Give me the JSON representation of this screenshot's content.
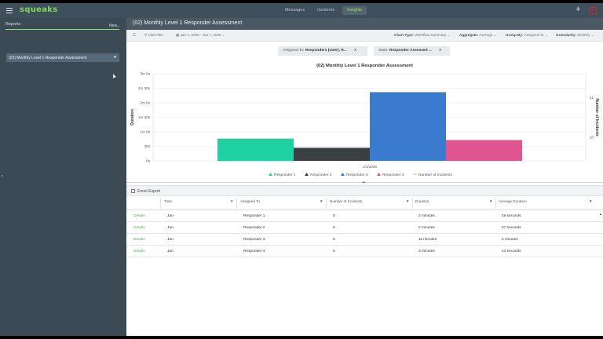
{
  "topnav": {
    "logo": "squeaks",
    "tabs": [
      {
        "label": "Messages",
        "active": false
      },
      {
        "label": "Incidents",
        "active": false
      },
      {
        "label": "Insights",
        "active": true
      }
    ],
    "plus": "+"
  },
  "sidebar": {
    "header": "Reports",
    "new_label": "New...",
    "items": [
      {
        "label": "(02) Monthly Level 1 Responder Assessment"
      }
    ],
    "collapse_glyph": "‹"
  },
  "main": {
    "title": "(02) Monthly Level 1 Responder Assessment"
  },
  "toolbar": {
    "add_filter": "Add Filter",
    "date_range": "Jan 1, 2026 - Jan 7, 2026",
    "chart_type_label": "Chart Type:",
    "chart_type_value": "Workflow Summary",
    "aggregate_label": "Aggregate:",
    "aggregate_value": "Average",
    "group_by_label": "Group By:",
    "group_by_value": "Assigned To",
    "granularity_label": "Granularity:",
    "granularity_value": "Monthly"
  },
  "filters": [
    {
      "label": "Assigned To:",
      "value": "Responder1 (User), R..."
    },
    {
      "label": "State:",
      "value": "Responder Assessed ..."
    }
  ],
  "chart_data": {
    "type": "bar",
    "title": "(02) Monthly Level 1 Responder Assessment",
    "categories": [
      "1/1/2026"
    ],
    "ylabel": "Duration",
    "y2label": "Number of Incidents",
    "yticks": [
      "0s",
      "30s",
      "1m 0s",
      "1m 30s",
      "2m 0s",
      "2m 30s",
      "3m 0s"
    ],
    "ylim": [
      0,
      180
    ],
    "y2ticks": [
      "20",
      "21"
    ],
    "y2lim": [
      19.4,
      21.6
    ],
    "series": [
      {
        "name": "Responder 1",
        "values": [
          46
        ],
        "color": "#1fd1a2"
      },
      {
        "name": "Responder 2",
        "values": [
          27
        ],
        "color": "#3a3f42"
      },
      {
        "name": "Responder 3",
        "values": [
          142
        ],
        "color": "#3a7bd0"
      },
      {
        "name": "Responder 4",
        "values": [
          43
        ],
        "color": "#e05590"
      }
    ],
    "line_series": {
      "name": "Number of Incidents"
    },
    "grid": true,
    "legend": "bottom"
  },
  "export": {
    "label": "Excel Export"
  },
  "table": {
    "columns": [
      "Time",
      "Assigned To",
      "Number of Incidents",
      "Duration",
      "Average Duration"
    ],
    "rows": [
      {
        "link": "Details",
        "time": "Jan",
        "assigned": "Responder 1",
        "count": "5",
        "duration": "3 minutes",
        "avg": "46 seconds"
      },
      {
        "link": "Details",
        "time": "Jan",
        "assigned": "Responder 2",
        "count": "5",
        "duration": "2 minutes",
        "avg": "27 seconds"
      },
      {
        "link": "Details",
        "time": "Jan",
        "assigned": "Responder 3",
        "count": "5",
        "duration": "11 minutes",
        "avg": "2 minutes"
      },
      {
        "link": "Details",
        "time": "Jan",
        "assigned": "Responder 4",
        "count": "5",
        "duration": "3 minutes",
        "avg": "43 seconds"
      }
    ]
  }
}
